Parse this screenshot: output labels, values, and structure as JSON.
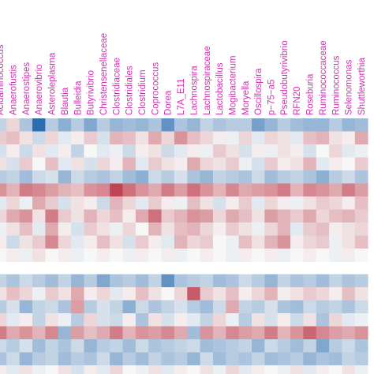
{
  "chart_data": {
    "type": "heatmap",
    "title": "",
    "xlabel": "",
    "ylabel": "",
    "label_color": "#d12fb2",
    "colorscale": {
      "low": "#2166ac",
      "mid": "#f7f7f7",
      "high": "#b2182b"
    },
    "columns": [
      "Acidaminococcus",
      "Anaerofustis",
      "Anaerostipes",
      "Anaerovibrio",
      "Asteroleplasma",
      "Blautia",
      "Bulleidia",
      "Butyrivibrio",
      "Christensenellaceae",
      "Clostridiaceae",
      "Clostridiales",
      "Clostridium",
      "Coprococcus",
      "Dorea",
      "L7A_E11",
      "Lachnospira",
      "Lachnospiraceae",
      "Lactobacillus",
      "Mogibacterium",
      "Moryella",
      "Oscillospira",
      "p−75−a5",
      "Pseudobutyrivibrio",
      "RFN20",
      "Roseburia",
      "Ruminococcaceae",
      "Ruminococcus",
      "Selenomonas",
      "Shuttleworthia"
    ],
    "values": [
      [
        -0.25,
        0.15,
        -0.35,
        -0.95,
        -0.3,
        -0.5,
        -0.3,
        -0.55,
        -0.3,
        -0.45,
        -0.4,
        -0.45,
        -0.35,
        -0.7,
        -0.35,
        -0.45,
        -0.25,
        -0.35,
        -0.3,
        -0.3,
        -0.6,
        -0.45,
        -0.3,
        -0.4,
        -0.45,
        -0.45,
        -0.3,
        -0.45,
        -0.4
      ],
      [
        0.2,
        0.25,
        0.1,
        -0.2,
        0.15,
        -0.1,
        0.05,
        0.2,
        -0.15,
        0.3,
        0.25,
        0.1,
        0.35,
        0.15,
        0.45,
        0.25,
        0.15,
        0.05,
        -0.05,
        0.15,
        -0.1,
        0.15,
        0.1,
        -0.1,
        0.25,
        0.3,
        0.1,
        0.05,
        0.35
      ],
      [
        -0.15,
        0.05,
        -0.2,
        0.1,
        -0.1,
        0.05,
        -0.25,
        0.0,
        -0.1,
        -0.05,
        -0.2,
        0.05,
        0.1,
        -0.2,
        -0.1,
        0.05,
        -0.05,
        0.2,
        0.1,
        -0.15,
        0.05,
        -0.05,
        0.1,
        0.05,
        -0.15,
        0.0,
        0.15,
        -0.1,
        -0.05
      ],
      [
        0.1,
        -0.15,
        0.2,
        0.0,
        0.25,
        -0.1,
        0.1,
        -0.15,
        0.15,
        0.05,
        0.3,
        -0.1,
        0.2,
        0.1,
        0.05,
        0.35,
        0.15,
        0.1,
        0.2,
        -0.05,
        -0.15,
        0.2,
        0.05,
        0.1,
        0.3,
        -0.1,
        0.05,
        0.0,
        0.2
      ],
      [
        -0.3,
        -0.25,
        -0.4,
        -0.2,
        -0.15,
        -0.45,
        -0.2,
        -0.3,
        -0.35,
        -0.25,
        -0.4,
        -0.5,
        -0.2,
        -0.3,
        -0.15,
        -0.35,
        -0.45,
        -0.25,
        -0.3,
        -0.35,
        -0.2,
        -0.4,
        -0.3,
        -0.25,
        -0.35,
        -0.5,
        -0.3,
        -0.2,
        -0.35
      ],
      [
        0.45,
        0.3,
        0.55,
        0.5,
        0.4,
        0.3,
        0.25,
        0.45,
        0.5,
        0.8,
        0.6,
        0.45,
        0.35,
        0.55,
        0.4,
        0.6,
        0.45,
        0.3,
        0.5,
        0.35,
        0.4,
        0.45,
        0.55,
        0.3,
        0.5,
        0.45,
        0.35,
        0.55,
        0.4
      ],
      [
        -0.1,
        0.15,
        -0.05,
        0.35,
        0.2,
        -0.15,
        0.1,
        0.05,
        -0.2,
        0.3,
        0.15,
        -0.1,
        0.2,
        0.05,
        -0.05,
        0.25,
        0.1,
        -0.15,
        0.05,
        0.2,
        -0.1,
        0.15,
        0.05,
        -0.05,
        0.1,
        0.2,
        0.15,
        0.05,
        0.25
      ],
      [
        0.15,
        0.35,
        0.45,
        0.1,
        0.55,
        0.2,
        0.1,
        0.3,
        0.15,
        0.25,
        0.05,
        0.35,
        0.6,
        0.2,
        0.3,
        0.45,
        0.4,
        0.15,
        0.35,
        0.25,
        0.1,
        0.4,
        0.3,
        0.2,
        0.35,
        0.15,
        0.25,
        0.3,
        0.2
      ],
      [
        -0.05,
        0.1,
        0.25,
        -0.1,
        0.35,
        0.05,
        -0.15,
        0.2,
        0.1,
        -0.05,
        0.15,
        0.0,
        0.3,
        0.1,
        0.25,
        0.3,
        0.15,
        0.05,
        0.2,
        0.1,
        -0.05,
        0.15,
        0.3,
        -0.1,
        0.2,
        0.25,
        0.05,
        0.1,
        0.15
      ],
      [
        0.05,
        -0.2,
        0.1,
        0.2,
        0.5,
        0.15,
        -0.1,
        0.05,
        0.25,
        0.1,
        -0.15,
        0.2,
        0.05,
        -0.1,
        0.3,
        0.15,
        0.2,
        0.0,
        -0.05,
        0.25,
        0.1,
        0.3,
        0.45,
        0.05,
        0.15,
        0.2,
        -0.05,
        0.1,
        0.25
      ],
      [
        0.0,
        0.05,
        -0.05,
        0.1,
        0.0,
        0.05,
        -0.05,
        0.0,
        0.05,
        0.0,
        -0.05,
        0.05,
        0.0,
        0.05,
        -0.05,
        0.0,
        0.05,
        0.0,
        -0.05,
        0.05,
        0.0,
        0.05,
        -0.05,
        0.0,
        0.05,
        0.0,
        -0.05,
        0.05,
        0.0
      ],
      [
        -0.25,
        -0.35,
        -0.2,
        -0.3,
        -0.4,
        -0.25,
        -0.45,
        -0.3,
        -0.55,
        -0.35,
        -0.3,
        -0.4,
        -0.25,
        -0.7,
        -0.35,
        -0.3,
        -0.25,
        -0.4,
        -0.35,
        -0.2,
        -0.3,
        -0.45,
        -0.25,
        -0.35,
        -0.3,
        -0.4,
        -0.25,
        -0.35,
        -0.3
      ],
      [
        0.1,
        0.25,
        0.15,
        -0.05,
        0.2,
        0.1,
        0.35,
        0.05,
        0.15,
        -0.1,
        0.05,
        0.25,
        0.1,
        0.0,
        0.15,
        0.7,
        0.2,
        0.1,
        0.25,
        0.05,
        0.15,
        0.3,
        0.05,
        0.1,
        0.2,
        0.15,
        0.05,
        0.25,
        0.1
      ],
      [
        -0.3,
        -0.15,
        -0.45,
        -0.25,
        -0.2,
        -0.35,
        0.4,
        -0.3,
        -0.15,
        -0.25,
        -0.5,
        -0.2,
        -0.35,
        -0.25,
        -0.15,
        -0.3,
        -0.4,
        -0.2,
        0.35,
        -0.25,
        -0.3,
        -0.15,
        -0.35,
        -0.4,
        -0.2,
        -0.3,
        -0.25,
        -0.35,
        -0.2
      ],
      [
        0.15,
        -0.1,
        0.05,
        -0.25,
        0.1,
        -0.05,
        -0.3,
        0.15,
        -0.15,
        -0.2,
        0.05,
        -0.35,
        0.1,
        -0.15,
        0.05,
        -0.1,
        -0.25,
        0.15,
        -0.05,
        -0.3,
        0.1,
        -0.15,
        0.05,
        -0.2,
        0.1,
        -0.35,
        0.15,
        -0.1,
        -0.05
      ],
      [
        0.55,
        0.35,
        0.45,
        0.3,
        0.5,
        -0.45,
        0.4,
        0.25,
        0.35,
        0.55,
        0.3,
        0.45,
        0.4,
        0.5,
        0.35,
        -0.4,
        0.45,
        0.3,
        0.5,
        0.4,
        0.35,
        0.55,
        0.3,
        0.45,
        0.65,
        0.5,
        0.4,
        0.35,
        0.45
      ],
      [
        -0.2,
        -0.3,
        -0.15,
        -0.4,
        -0.25,
        -0.35,
        -0.2,
        -0.45,
        -0.3,
        -0.25,
        -0.4,
        -0.2,
        -0.35,
        -0.3,
        -0.25,
        -0.2,
        -0.4,
        -0.35,
        -0.3,
        -0.25,
        -0.45,
        -0.2,
        -0.3,
        -0.4,
        -0.25,
        -0.55,
        -0.3,
        -0.2,
        -0.35
      ],
      [
        -0.35,
        -0.2,
        -0.45,
        -0.3,
        -0.25,
        -0.4,
        -0.3,
        -0.35,
        -0.2,
        -0.45,
        -0.3,
        -0.4,
        -0.25,
        -0.35,
        -0.3,
        -0.45,
        -0.2,
        -0.4,
        -0.3,
        -0.35,
        -0.25,
        -0.4,
        -0.35,
        -0.3,
        -0.45,
        -0.35,
        -0.4,
        -0.25,
        -0.3
      ],
      [
        0.05,
        -0.1,
        0.1,
        -0.05,
        0.0,
        0.1,
        -0.15,
        0.05,
        -0.1,
        0.15,
        0.0,
        -0.05,
        0.1,
        -0.1,
        0.05,
        0.0,
        0.1,
        -0.05,
        0.15,
        -0.1,
        0.05,
        0.0,
        -0.05,
        0.1,
        -0.1,
        0.05,
        0.0,
        0.1,
        -0.05
      ]
    ],
    "row_gaps_after": [
      10
    ]
  }
}
